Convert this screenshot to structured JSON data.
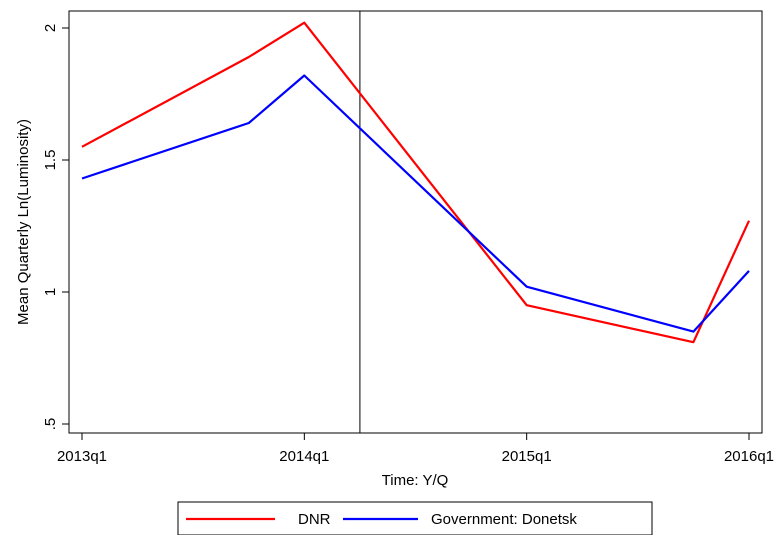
{
  "chart_data": {
    "type": "line",
    "xlabel": "Time: Y/Q",
    "ylabel": "Mean Quarterly Ln(Luminosity)",
    "x_ticks": [
      "2013q1",
      "2014q1",
      "2015q1",
      "2016q1"
    ],
    "y_ticks": [
      ".5",
      "1",
      "1.5",
      "2"
    ],
    "ylim": [
      0.5,
      2.05
    ],
    "xlim": [
      "2013q1",
      "2016q1"
    ],
    "vertical_line_at": "2014q2",
    "grid": false,
    "legend_position": "bottom",
    "series": [
      {
        "name": "DNR",
        "color": "#ff0000",
        "x": [
          "2013q1",
          "2013q4",
          "2014q1",
          "2015q1",
          "2015q4",
          "2016q1"
        ],
        "values": [
          1.55,
          1.89,
          2.02,
          0.95,
          0.81,
          1.27
        ]
      },
      {
        "name": "Government: Donetsk",
        "color": "#0000ff",
        "x": [
          "2013q1",
          "2013q4",
          "2014q1",
          "2015q1",
          "2015q4",
          "2016q1"
        ],
        "values": [
          1.43,
          1.64,
          1.82,
          1.02,
          0.85,
          1.08
        ]
      }
    ]
  }
}
